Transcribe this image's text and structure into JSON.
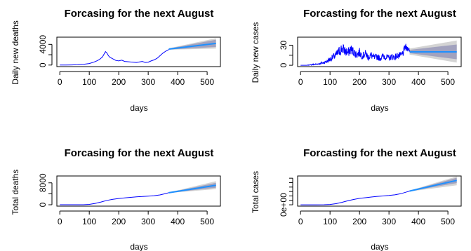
{
  "chart_data": [
    {
      "type": "line",
      "title": "Forcasing for the next August",
      "xlabel": "days",
      "ylabel": "Daily new deaths",
      "xlim": [
        -10,
        545
      ],
      "ylim": [
        -300,
        5400
      ],
      "x_ticks": [
        0,
        100,
        200,
        300,
        400,
        500
      ],
      "y_ticks": [
        0,
        2000,
        4000
      ],
      "y_tick_labels": [
        "0",
        "",
        "4000"
      ],
      "series": [
        {
          "role": "observed",
          "color": "#0000ff",
          "x": [
            0,
            20,
            40,
            60,
            80,
            100,
            115,
            125,
            135,
            145,
            150,
            155,
            160,
            165,
            170,
            180,
            190,
            200,
            210,
            220,
            230,
            240,
            250,
            260,
            270,
            280,
            290,
            300,
            310,
            320,
            330,
            340,
            350,
            360,
            370
          ],
          "y": [
            0,
            0,
            20,
            60,
            150,
            300,
            550,
            800,
            1100,
            1600,
            2100,
            2600,
            2300,
            1800,
            1500,
            1200,
            900,
            800,
            950,
            700,
            650,
            600,
            550,
            500,
            600,
            700,
            500,
            550,
            800,
            1000,
            1300,
            1800,
            2300,
            2700,
            3000
          ]
        },
        {
          "role": "forecast",
          "color": "#1e90ff",
          "x": [
            370,
            530
          ],
          "y": [
            3100,
            4200
          ],
          "band80_lower": [
            3000,
            3500
          ],
          "band80_upper": [
            3200,
            4900
          ],
          "band95_lower": [
            2950,
            3200
          ],
          "band95_upper": [
            3250,
            5200
          ]
        }
      ],
      "band_colors": {
        "ci95": "#d4d4d4",
        "ci80": "#a2a2be"
      }
    },
    {
      "type": "line",
      "title": "Forcasting for the next August",
      "xlabel": "days",
      "ylabel": "Daily new cases",
      "xlim": [
        -10,
        545
      ],
      "ylim": [
        -2,
        42
      ],
      "x_ticks": [
        0,
        100,
        200,
        300,
        400,
        500
      ],
      "y_ticks": [
        0,
        15,
        30
      ],
      "y_tick_labels": [
        "0",
        "",
        "30"
      ],
      "series": [
        {
          "role": "observed",
          "color": "#0000ff",
          "x": [
            0,
            20,
            40,
            60,
            80,
            90,
            100,
            110,
            120,
            130,
            140,
            150,
            160,
            170,
            180,
            190,
            200,
            210,
            220,
            230,
            240,
            250,
            260,
            270,
            280,
            290,
            300,
            310,
            320,
            330,
            340,
            350,
            355,
            360,
            365,
            370
          ],
          "y": [
            0,
            0,
            1,
            2,
            4,
            6,
            9,
            12,
            15,
            20,
            25,
            22,
            18,
            24,
            20,
            16,
            19,
            14,
            17,
            12,
            15,
            11,
            13,
            10,
            14,
            12,
            11,
            13,
            12,
            15,
            14,
            20,
            28,
            24,
            26,
            22
          ],
          "noise_amp": [
            0,
            0,
            1,
            1,
            2,
            3,
            4,
            5,
            6,
            8,
            9,
            8,
            7,
            8,
            7,
            6,
            7,
            5,
            6,
            5,
            6,
            5,
            5,
            4,
            5,
            5,
            4,
            5,
            5,
            5,
            5,
            6,
            6,
            5,
            4,
            3
          ]
        },
        {
          "role": "forecast",
          "color": "#1e90ff",
          "x": [
            370,
            530
          ],
          "y": [
            20,
            20
          ],
          "band80_lower": [
            18,
            9
          ],
          "band80_upper": [
            23,
            31
          ],
          "band95_lower": [
            16,
            4
          ],
          "band95_upper": [
            25,
            37
          ]
        }
      ],
      "band_colors": {
        "ci95": "#d4d4d4",
        "ci80": "#a2a2be"
      }
    },
    {
      "type": "line",
      "title": "Forcasing for the next August",
      "xlabel": "days",
      "ylabel": "Total deaths",
      "xlim": [
        -10,
        545
      ],
      "ylim": [
        -500,
        10500
      ],
      "x_ticks": [
        0,
        100,
        200,
        300,
        400,
        500
      ],
      "y_ticks": [
        0,
        4000,
        8000
      ],
      "y_tick_labels": [
        "0",
        "",
        "8000"
      ],
      "series": [
        {
          "role": "observed",
          "color": "#0000ff",
          "x": [
            0,
            50,
            80,
            100,
            120,
            140,
            160,
            180,
            200,
            220,
            240,
            260,
            280,
            300,
            320,
            340,
            360,
            370
          ],
          "y": [
            0,
            0,
            20,
            150,
            500,
            1000,
            1600,
            2000,
            2300,
            2500,
            2700,
            2900,
            3000,
            3150,
            3300,
            3600,
            4100,
            4400
          ]
        },
        {
          "role": "forecast",
          "color": "#1e90ff",
          "x": [
            370,
            530
          ],
          "y": [
            4400,
            7100
          ],
          "band80_lower": [
            4350,
            6200
          ],
          "band80_upper": [
            4450,
            8000
          ],
          "band95_lower": [
            4300,
            5700
          ],
          "band95_upper": [
            4500,
            8600
          ]
        }
      ],
      "band_colors": {
        "ci95": "#d4d4d4",
        "ci80": "#a2a2be"
      }
    },
    {
      "type": "line",
      "title": "Forcasting for the next August",
      "xlabel": "days",
      "ylabel": "Total cases",
      "xlim": [
        -10,
        545
      ],
      "ylim": [
        -0.3,
        6.5
      ],
      "x_ticks": [
        0,
        100,
        200,
        300,
        400,
        500
      ],
      "y_ticks": [
        0,
        1,
        2,
        3,
        4,
        5,
        6
      ],
      "y_tick_labels": [
        "0e+00",
        "",
        "",
        "",
        "",
        "",
        ""
      ],
      "series": [
        {
          "role": "observed",
          "color": "#0000ff",
          "x": [
            0,
            50,
            80,
            100,
            120,
            140,
            160,
            180,
            200,
            220,
            240,
            260,
            280,
            300,
            320,
            340,
            360,
            370
          ],
          "y": [
            0,
            0,
            0.02,
            0.08,
            0.25,
            0.55,
            0.9,
            1.2,
            1.45,
            1.6,
            1.75,
            1.9,
            2.0,
            2.1,
            2.25,
            2.5,
            2.9,
            3.1
          ]
        },
        {
          "role": "forecast",
          "color": "#1e90ff",
          "x": [
            370,
            530
          ],
          "y": [
            3.1,
            5.5
          ],
          "band80_lower": [
            3.05,
            4.9
          ],
          "band80_upper": [
            3.15,
            6.1
          ],
          "band95_lower": [
            3.0,
            4.4
          ],
          "band95_upper": [
            3.2,
            6.4
          ]
        }
      ],
      "band_colors": {
        "ci95": "#d4d4d4",
        "ci80": "#a2a2be"
      }
    }
  ]
}
